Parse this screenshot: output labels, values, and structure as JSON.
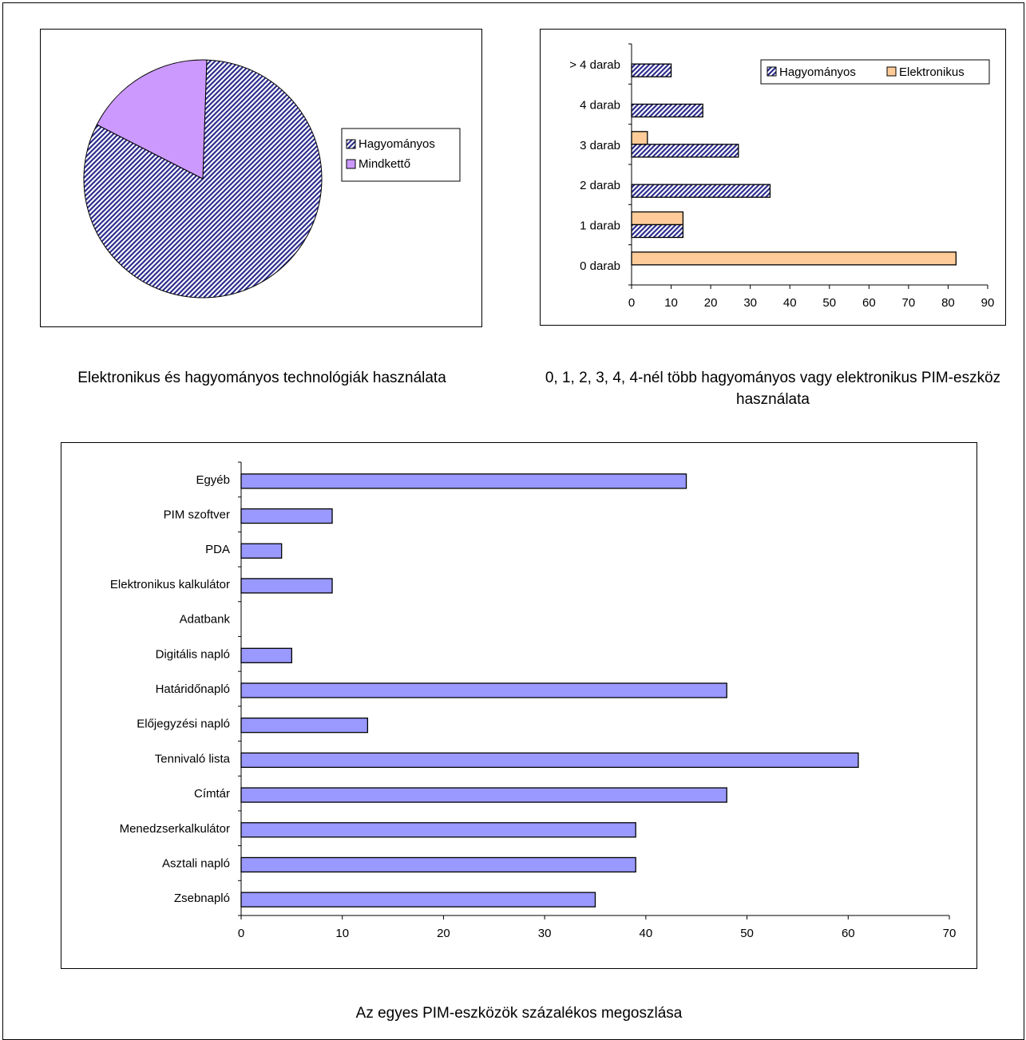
{
  "colors": {
    "hatch": "#2e2e8f",
    "pie_mindketto": "#cc99ff",
    "elektronikus": "#ffcc99",
    "bar_blue": "#9999ff"
  },
  "captions": {
    "pie": "Elektronikus és hagyományos technológiák használata",
    "counts": "0, 1, 2, 3, 4, 4-nél több hagyományos vagy elektronikus PIM-eszköz használata",
    "tools": "Az egyes PIM-eszközök százalékos megoszlása"
  },
  "chart_data": [
    {
      "type": "pie",
      "slices": [
        {
          "label": "Hagyományos",
          "value": 82,
          "fill": "hatch"
        },
        {
          "label": "Mindkettő",
          "value": 18,
          "fill": "#cc99ff"
        }
      ],
      "legend_position": "right",
      "title": ""
    },
    {
      "type": "bar",
      "orientation": "horizontal",
      "categories": [
        "0 darab",
        "1 darab",
        "2 darab",
        "3 darab",
        "4 darab",
        "> 4 darab"
      ],
      "series": [
        {
          "name": "Hagyományos",
          "values": [
            0,
            13,
            35,
            27,
            18,
            10
          ],
          "fill": "hatch"
        },
        {
          "name": "Elektronikus",
          "values": [
            82,
            13,
            0,
            4,
            0,
            0
          ],
          "fill": "#ffcc99"
        }
      ],
      "xlim": [
        0,
        90
      ],
      "xticks": [
        0,
        10,
        20,
        30,
        40,
        50,
        60,
        70,
        80,
        90
      ],
      "legend_position": "top-right",
      "title": ""
    },
    {
      "type": "bar",
      "orientation": "horizontal",
      "categories": [
        "Zsebnapló",
        "Asztali napló",
        "Menedzserkalkulátor",
        "Címtár",
        "Tennivaló lista",
        "Előjegyzési napló",
        "Határidőnapló",
        "Digitális napló",
        "Adatbank",
        "Elektronikus kalkulátor",
        "PDA",
        "PIM szoftver",
        "Egyéb"
      ],
      "values": [
        35,
        39,
        39,
        48,
        61,
        12.5,
        48,
        5,
        0,
        9,
        4,
        9,
        44
      ],
      "xlim": [
        0,
        70
      ],
      "xticks": [
        0,
        10,
        20,
        30,
        40,
        50,
        60,
        70
      ],
      "title": ""
    }
  ]
}
